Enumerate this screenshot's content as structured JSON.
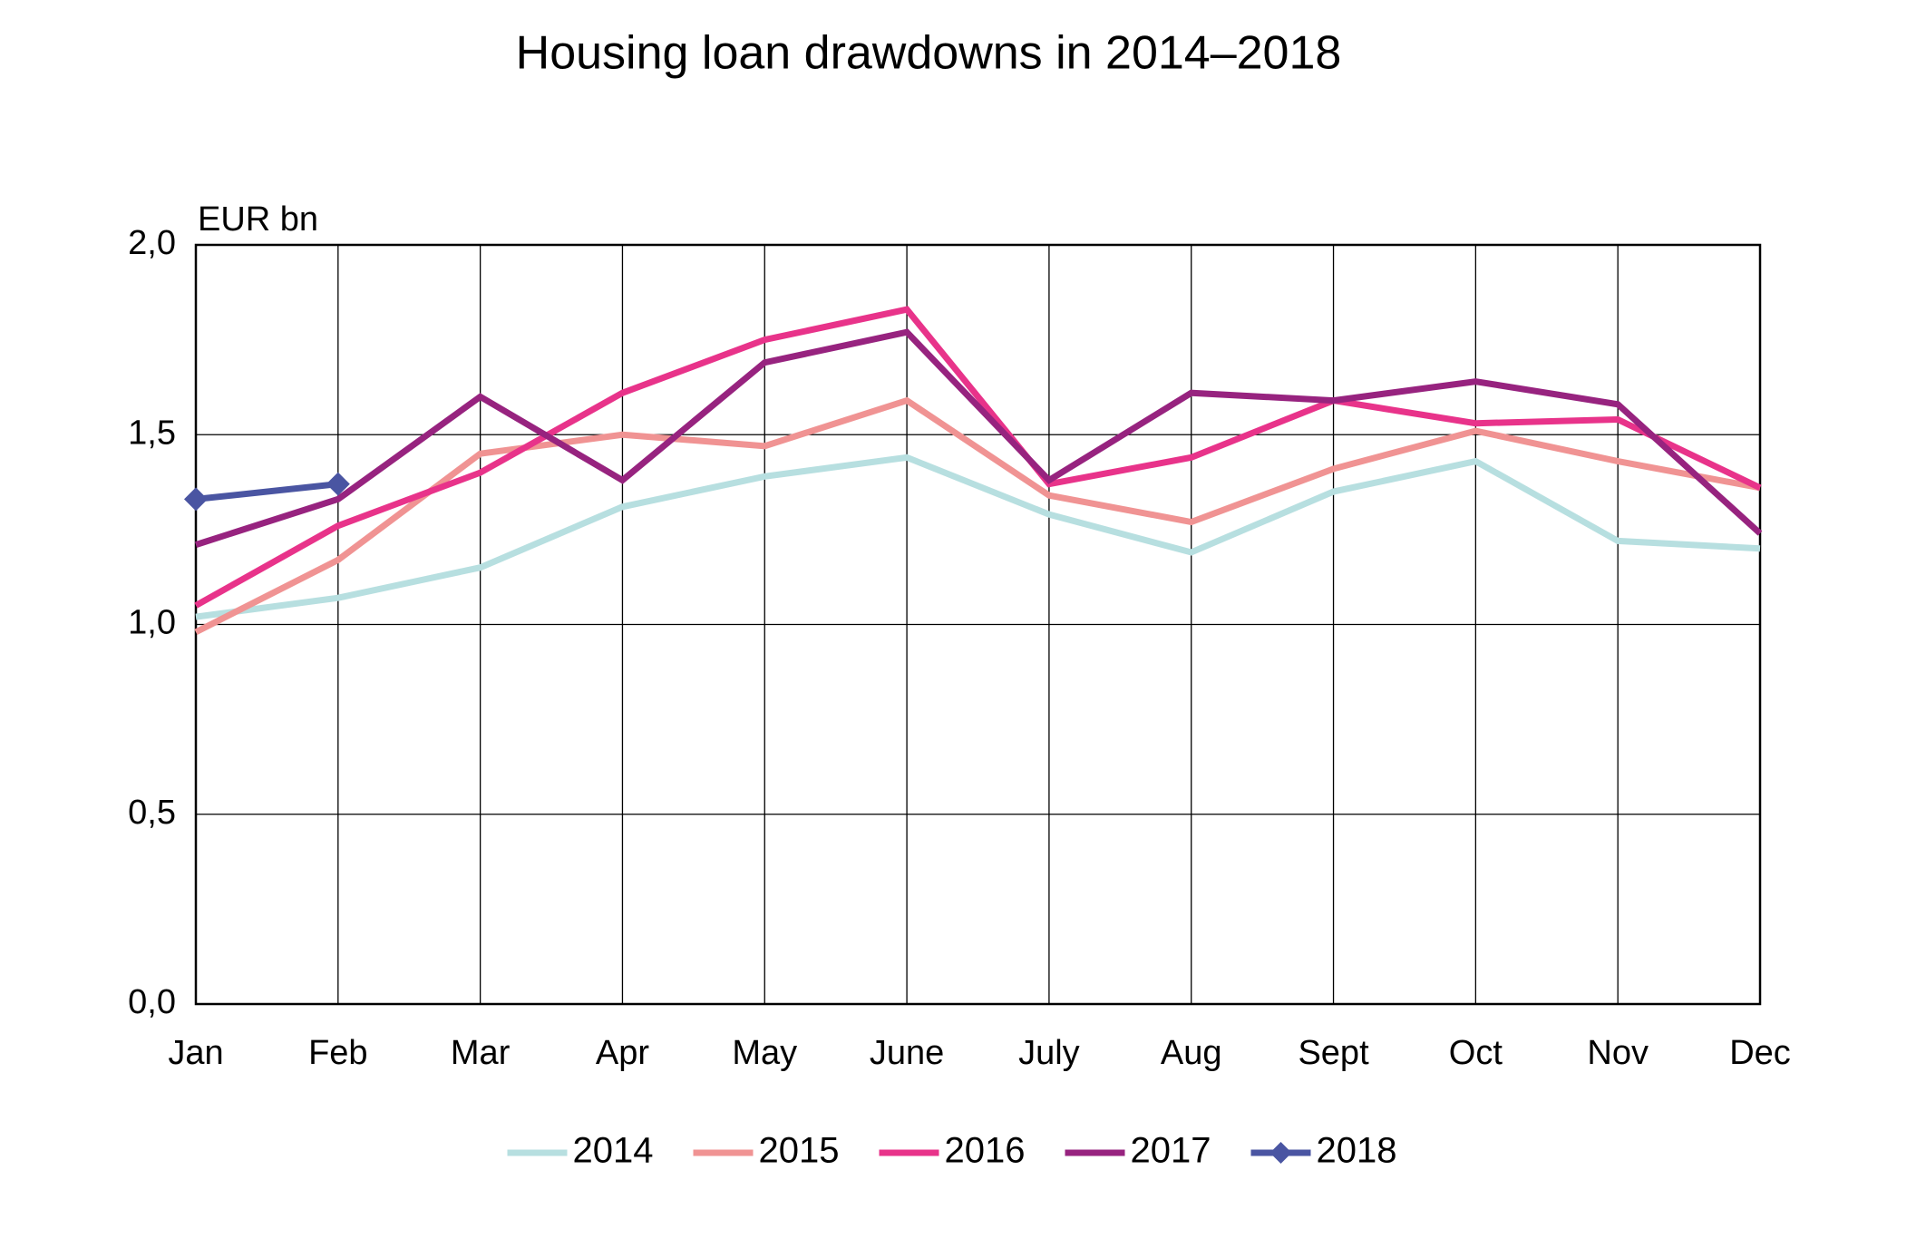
{
  "chart_data": {
    "type": "line",
    "title": "Housing loan drawdowns in 2014–2018",
    "y_label": "EUR bn",
    "categories": [
      "Jan",
      "Feb",
      "Mar",
      "Apr",
      "May",
      "June",
      "July",
      "Aug",
      "Sept",
      "Oct",
      "Nov",
      "Dec"
    ],
    "series": [
      {
        "name": "2014",
        "color": "#b7dfe0",
        "values": [
          1.02,
          1.07,
          1.15,
          1.31,
          1.39,
          1.44,
          1.29,
          1.19,
          1.35,
          1.43,
          1.22,
          1.2
        ]
      },
      {
        "name": "2015",
        "color": "#f09393",
        "values": [
          0.98,
          1.17,
          1.45,
          1.5,
          1.47,
          1.59,
          1.34,
          1.27,
          1.41,
          1.51,
          1.43,
          1.36
        ]
      },
      {
        "name": "2016",
        "color": "#e8338a",
        "values": [
          1.05,
          1.26,
          1.4,
          1.61,
          1.75,
          1.83,
          1.37,
          1.44,
          1.59,
          1.53,
          1.54,
          1.36
        ]
      },
      {
        "name": "2017",
        "color": "#97237f",
        "values": [
          1.21,
          1.33,
          1.6,
          1.38,
          1.69,
          1.77,
          1.38,
          1.61,
          1.59,
          1.64,
          1.58,
          1.24
        ]
      },
      {
        "name": "2018",
        "color": "#4a55a2",
        "marker": "diamond",
        "values": [
          1.33,
          1.37,
          null,
          null,
          null,
          null,
          null,
          null,
          null,
          null,
          null,
          null
        ]
      }
    ],
    "ylim": [
      0,
      2
    ],
    "yticks": [
      {
        "value": 0,
        "label": "0,0"
      },
      {
        "value": 0.5,
        "label": "0,5"
      },
      {
        "value": 1,
        "label": "1,0"
      },
      {
        "value": 1.5,
        "label": "1,5"
      },
      {
        "value": 2,
        "label": "2,0"
      }
    ],
    "grid": true,
    "legend": "bottom"
  }
}
